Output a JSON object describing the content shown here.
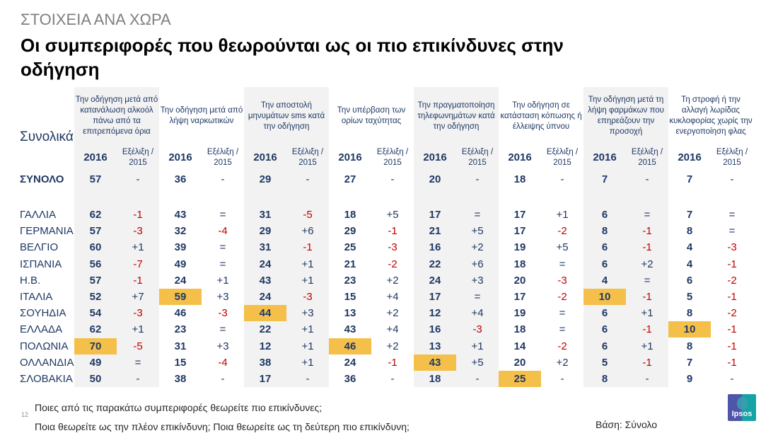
{
  "header": {
    "subtitle": "ΣΤΟΙΧΕΙΑ ΑΝΑ ΧΩΡΑ",
    "title": "Οι συμπεριφορές που θεωρούνται ως οι πιο επικίνδυνες στην οδήγηση"
  },
  "table": {
    "corner_label": "Συνολικά",
    "year_label": "2016",
    "evolution_label": "Εξέλιξη / 2015",
    "highlight_color": "#f4c04a",
    "negative_color": "#c00000",
    "text_color": "#1f3864",
    "columns": [
      {
        "label": "Την οδήγηση μετά από κατανάλωση αλκοόλ πάνω από τα επιτρεπόμενα όρια",
        "shaded": true
      },
      {
        "label": "Την οδήγηση μετά από λήψη ναρκωτικών",
        "shaded": false
      },
      {
        "label": "Την αποστολή μηνυμάτων sms κατά την οδήγηση",
        "shaded": true
      },
      {
        "label": "Την υπέρβαση των ορίων ταχύτητας",
        "shaded": false
      },
      {
        "label": "Την πραγματοποίηση τηλεφωνημάτων κατά την οδήγηση",
        "shaded": true
      },
      {
        "label": "Την οδήγηση σε κατάσταση κόπωσης ή έλλειψης ύπνου",
        "shaded": false
      },
      {
        "label": "Την οδήγηση μετά τη λήψη φαρμάκων που επηρεάζουν την προσοχή",
        "shaded": true
      },
      {
        "label": "Τη στροφή ή την αλλαγή λωρίδας κυκλοφορίας χωρίς την ενεργοποίηση φλας",
        "shaded": false
      }
    ],
    "total_row": {
      "label": "ΣΥΝΟΛΟ",
      "values": [
        "57",
        "36",
        "29",
        "27",
        "20",
        "18",
        "7",
        "7"
      ],
      "changes": [
        "-",
        "-",
        "-",
        "-",
        "-",
        "-",
        "-",
        "-"
      ]
    },
    "rows": [
      {
        "country": "ΓΑΛΛΙΑ",
        "values": [
          "62",
          "43",
          "31",
          "18",
          "17",
          "17",
          "6",
          "7"
        ],
        "changes": [
          "-1",
          "=",
          "-5",
          "+5",
          "=",
          "+1",
          "=",
          "="
        ],
        "highlight": []
      },
      {
        "country": "ΓΕΡΜΑΝΙΑ",
        "values": [
          "57",
          "32",
          "29",
          "29",
          "21",
          "17",
          "8",
          "8"
        ],
        "changes": [
          "-3",
          "-4",
          "+6",
          "-1",
          "+5",
          "-2",
          "-1",
          "="
        ],
        "highlight": []
      },
      {
        "country": "ΒΕΛΓΙΟ",
        "values": [
          "60",
          "39",
          "31",
          "25",
          "16",
          "19",
          "6",
          "4"
        ],
        "changes": [
          "+1",
          "=",
          "-1",
          "-3",
          "+2",
          "+5",
          "-1",
          "-3"
        ],
        "highlight": []
      },
      {
        "country": "ΙΣΠΑΝΙΑ",
        "values": [
          "56",
          "49",
          "24",
          "21",
          "22",
          "18",
          "6",
          "4"
        ],
        "changes": [
          "-7",
          "=",
          "+1",
          "-2",
          "+6",
          "=",
          "+2",
          "-1"
        ],
        "highlight": []
      },
      {
        "country": "Η.Β.",
        "values": [
          "57",
          "24",
          "43",
          "23",
          "24",
          "20",
          "4",
          "6"
        ],
        "changes": [
          "-1",
          "+1",
          "+1",
          "+2",
          "+3",
          "-3",
          "=",
          "-2"
        ],
        "highlight": []
      },
      {
        "country": "ΙΤΑΛΙΑ",
        "values": [
          "52",
          "59",
          "24",
          "15",
          "17",
          "17",
          "10",
          "5"
        ],
        "changes": [
          "+7",
          "+3",
          "-3",
          "+4",
          "=",
          "-2",
          "-1",
          "-1"
        ],
        "highlight": [
          1,
          6
        ]
      },
      {
        "country": "ΣΟΥΗΔΙΑ",
        "values": [
          "54",
          "46",
          "44",
          "13",
          "12",
          "19",
          "6",
          "8"
        ],
        "changes": [
          "-3",
          "-3",
          "+3",
          "+2",
          "+4",
          "=",
          "+1",
          "-2"
        ],
        "highlight": [
          2
        ]
      },
      {
        "country": "ΕΛΛΑΔΑ",
        "values": [
          "62",
          "23",
          "22",
          "43",
          "16",
          "18",
          "6",
          "10"
        ],
        "changes": [
          "+1",
          "=",
          "+1",
          "+4",
          "-3",
          "=",
          "-1",
          "-1"
        ],
        "highlight": [
          7
        ]
      },
      {
        "country": "ΠΟΛΩΝΙΑ",
        "values": [
          "70",
          "31",
          "12",
          "46",
          "13",
          "14",
          "6",
          "8"
        ],
        "changes": [
          "-5",
          "+3",
          "+1",
          "+2",
          "+1",
          "-2",
          "+1",
          "-1"
        ],
        "highlight": [
          0,
          3
        ]
      },
      {
        "country": "ΟΛΛΑΝΔΙΑ",
        "values": [
          "49",
          "15",
          "38",
          "24",
          "43",
          "20",
          "5",
          "7"
        ],
        "changes": [
          "=",
          "-4",
          "+1",
          "-1",
          "+5",
          "+2",
          "-1",
          "-1"
        ],
        "highlight": [
          4
        ]
      },
      {
        "country": "ΣΛΟΒΑΚΙΑ",
        "values": [
          "50",
          "38",
          "17",
          "36",
          "18",
          "25",
          "8",
          "9"
        ],
        "changes": [
          "-",
          "-",
          "-",
          "-",
          "-",
          "-",
          "-",
          "-"
        ],
        "highlight": [
          5
        ]
      }
    ]
  },
  "footer": {
    "page_number": "12",
    "question_1": "Ποιες από τις παρακάτω συμπεριφορές θεωρείτε πιο επικίνδυνες;",
    "question_2": "Ποια θεωρείτε ως την πλέον επικίνδυνη;  Ποια θεωρείτε ως τη δεύτερη πιο επικίνδυνη;",
    "base": "Βάση: Σύνολο",
    "logo_text": "Ipsos"
  }
}
